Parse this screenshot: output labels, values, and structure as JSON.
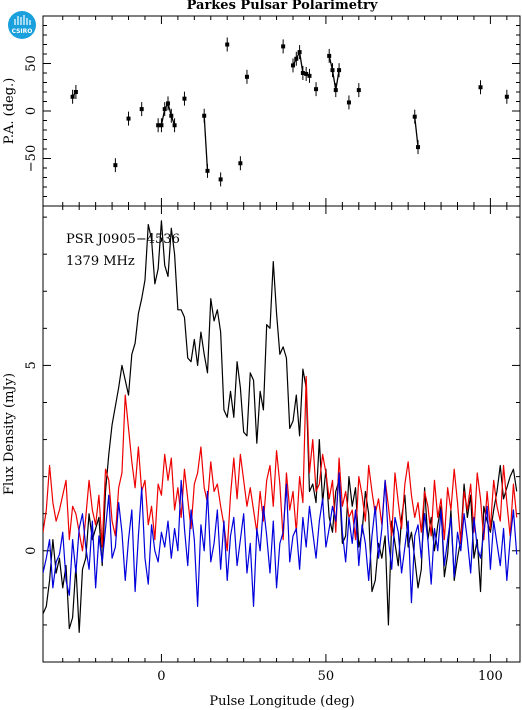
{
  "title": "Parkes Pulsar Polarimetry",
  "logo_text": "CSIRO",
  "colors": {
    "total_intensity": "#000000",
    "linear": "#ee0000",
    "circular": "#0000dd",
    "logo": "#1aa0dc"
  },
  "chart_data": [
    {
      "type": "scatter",
      "panel": "position-angle",
      "ylabel": "P.A. (deg.)",
      "xlim": [
        -36,
        109
      ],
      "ylim": [
        -100,
        100
      ],
      "yticks": [
        -50,
        0,
        50
      ],
      "segments": [
        [
          [
            -27,
            15
          ],
          [
            -26,
            20
          ]
        ],
        [
          [
            -14,
            -57
          ]
        ],
        [
          [
            -10,
            -8
          ]
        ],
        [
          [
            -6,
            2
          ]
        ],
        [
          [
            -1,
            -15
          ],
          [
            0,
            -15
          ],
          [
            1,
            2
          ],
          [
            2,
            8
          ],
          [
            3,
            -5
          ],
          [
            4,
            -15
          ]
        ],
        [
          [
            7,
            13
          ]
        ],
        [
          [
            13,
            -5
          ],
          [
            14,
            -63
          ]
        ],
        [
          [
            18,
            -72
          ]
        ],
        [
          [
            20,
            70
          ]
        ],
        [
          [
            24,
            -55
          ]
        ],
        [
          [
            26,
            36
          ]
        ],
        [
          [
            37,
            68
          ]
        ],
        [
          [
            40,
            48
          ],
          [
            41,
            55
          ],
          [
            42,
            62
          ],
          [
            43,
            40
          ],
          [
            44,
            39
          ],
          [
            45,
            37
          ]
        ],
        [
          [
            47,
            23
          ]
        ],
        [
          [
            51,
            58
          ],
          [
            52,
            43
          ],
          [
            53,
            22
          ],
          [
            54,
            43
          ]
        ],
        [
          [
            57,
            9
          ]
        ],
        [
          [
            60,
            22
          ]
        ],
        [
          [
            77,
            -6
          ],
          [
            78,
            -38
          ]
        ],
        [
          [
            97,
            25
          ]
        ],
        [
          [
            105,
            15
          ]
        ]
      ]
    },
    {
      "type": "line",
      "panel": "flux-density",
      "ylabel": "Flux Density (mJy)",
      "xlabel": "Pulse Longitude (deg)",
      "xlim": [
        -36,
        109
      ],
      "ylim": [
        -3,
        9.3
      ],
      "yticks": [
        0,
        5
      ],
      "xticks": [
        0,
        50,
        100
      ],
      "annotations": [
        "PSR J0905−4536",
        "1379 MHz"
      ],
      "x": [
        -36,
        -35,
        -34,
        -33,
        -32,
        -31,
        -30,
        -29,
        -28,
        -27,
        -26,
        -25,
        -24,
        -23,
        -22,
        -21,
        -20,
        -19,
        -18,
        -17,
        -16,
        -15,
        -14,
        -13,
        -12,
        -11,
        -10,
        -9,
        -8,
        -7,
        -6,
        -5,
        -4,
        -3,
        -2,
        -1,
        0,
        1,
        2,
        3,
        4,
        5,
        6,
        7,
        8,
        9,
        10,
        11,
        12,
        13,
        14,
        15,
        16,
        17,
        18,
        19,
        20,
        21,
        22,
        23,
        24,
        25,
        26,
        27,
        28,
        29,
        30,
        31,
        32,
        33,
        34,
        35,
        36,
        37,
        38,
        39,
        40,
        41,
        42,
        43,
        44,
        45,
        46,
        47,
        48,
        49,
        50,
        51,
        52,
        53,
        54,
        55,
        56,
        57,
        58,
        59,
        60,
        61,
        62,
        63,
        64,
        65,
        66,
        67,
        68,
        69,
        70,
        71,
        72,
        73,
        74,
        75,
        76,
        77,
        78,
        79,
        80,
        81,
        82,
        83,
        84,
        85,
        86,
        87,
        88,
        89,
        90,
        91,
        92,
        93,
        94,
        95,
        96,
        97,
        98,
        99,
        100,
        101,
        102,
        103,
        104,
        105,
        106,
        107,
        108
      ],
      "series": [
        {
          "role": "total-intensity",
          "values": [
            -1.7,
            -1.5,
            -0.8,
            0.3,
            -0.6,
            -0.2,
            -1.0,
            -0.4,
            -2.1,
            -1.8,
            -0.4,
            -2.2,
            -0.5,
            -0.2,
            1.0,
            0.3,
            0.6,
            0.9,
            -0.4,
            1.6,
            2.6,
            3.4,
            3.9,
            4.4,
            5.0,
            4.6,
            4.2,
            5.3,
            5.6,
            6.4,
            6.8,
            7.3,
            8.8,
            8.4,
            7.2,
            7.6,
            8.9,
            7.7,
            7.4,
            8.7,
            8.0,
            6.5,
            6.5,
            6.3,
            5.2,
            5.1,
            5.7,
            5.0,
            5.9,
            5.3,
            4.8,
            6.8,
            6.2,
            6.5,
            5.9,
            3.8,
            3.6,
            4.3,
            3.6,
            5.1,
            4.4,
            3.2,
            3.1,
            4.8,
            4.6,
            2.9,
            4.3,
            3.8,
            6.1,
            6.0,
            7.8,
            6.4,
            5.3,
            5.5,
            5.2,
            3.3,
            3.5,
            4.2,
            3.1,
            4.9,
            4.4,
            1.6,
            1.8,
            1.3,
            3.0,
            1.3,
            2.2,
            0.9,
            0.5,
            1.6,
            1.9,
            0.2,
            0.4,
            2.0,
            1.2,
            1.7,
            0.1,
            0.5,
            1.6,
            1.0,
            -1.1,
            -0.8,
            0.2,
            -0.2,
            0.4,
            -2.0,
            0.8,
            0.2,
            -0.4,
            0.9,
            1.5,
            0.1,
            0.5,
            -0.2,
            -1.0,
            -0.5,
            1.7,
            0.3,
            0.9,
            0.0,
            0.7,
            1.2,
            -0.7,
            -0.1,
            1.1,
            -0.8,
            -0.2,
            0.3,
            1.8,
            0.9,
            1.5,
            -0.2,
            0.3,
            -1.1,
            1.2,
            0.8,
            0.5,
            1.1,
            1.6,
            2.3,
            1.4,
            1.7,
            2.0,
            2.2,
            1.6
          ]
        },
        {
          "role": "linear-polarization",
          "values": [
            0.5,
            1.1,
            2.3,
            1.3,
            0.8,
            1.1,
            1.5,
            1.9,
            0.3,
            1.2,
            1.0,
            0.5,
            0.0,
            0.9,
            1.9,
            1.1,
            0.7,
            1.5,
            0.1,
            2.2,
            1.9,
            0.8,
            0.4,
            1.7,
            2.1,
            4.2,
            3.3,
            2.4,
            1.7,
            2.8,
            1.6,
            1.9,
            0.7,
            1.2,
            0.3,
            1.8,
            1.5,
            2.6,
            1.9,
            2.5,
            1.1,
            1.7,
            0.9,
            2.2,
            1.4,
            0.6,
            1.8,
            2.1,
            2.8,
            1.7,
            1.3,
            2.4,
            1.6,
            1.8,
            1.2,
            0.7,
            0.0,
            1.5,
            2.5,
            1.4,
            2.6,
            1.9,
            1.2,
            1.7,
            1.1,
            0.5,
            1.6,
            0.8,
            1.9,
            2.3,
            1.2,
            2.7,
            1.8,
            0.3,
            2.1,
            1.1,
            1.6,
            0.5,
            2.0,
            1.3,
            4.7,
            2.1,
            3.0,
            1.6,
            1.8,
            2.6,
            2.1,
            1.4,
            1.9,
            0.5,
            2.5,
            1.2,
            1.6,
            0.9,
            1.1,
            0.3,
            2.0,
            1.5,
            0.8,
            2.3,
            1.6,
            1.0,
            1.4,
            0.7,
            1.9,
            1.2,
            0.4,
            2.1,
            1.3,
            0.6,
            1.8,
            2.4,
            1.5,
            0.9,
            1.3,
            0.5,
            1.6,
            1.2,
            0.4,
            1.9,
            0.9,
            1.4,
            0.3,
            1.7,
            1.1,
            2.2,
            1.3,
            0.2,
            1.6,
            1.1,
            1.8,
            0.5,
            2.1,
            1.4,
            0.3,
            1.6,
            0.6,
            1.9,
            1.2,
            0.8,
            2.3,
            1.3,
            0.4,
            1.8,
            0.9
          ]
        },
        {
          "role": "circular-polarization",
          "values": [
            -0.6,
            -0.2,
            0.3,
            -1.0,
            -0.3,
            -0.1,
            0.5,
            -0.8,
            -1.2,
            0.3,
            -0.6,
            0.6,
            1.0,
            0.1,
            -0.5,
            0.8,
            -1.0,
            0.4,
            -0.3,
            0.6,
            1.5,
            -0.2,
            0.1,
            1.3,
            0.5,
            -0.8,
            0.3,
            1.1,
            -1.1,
            0.4,
            1.7,
            -0.2,
            -0.9,
            0.7,
            0.0,
            -0.3,
            0.5,
            0.1,
            0.8,
            -0.2,
            0.6,
            0.0,
            1.9,
            0.6,
            -0.4,
            1.1,
            0.3,
            -1.5,
            0.7,
            0.0,
            1.6,
            -0.3,
            0.2,
            1.1,
            -0.5,
            0.8,
            -0.8,
            0.4,
            0.9,
            -0.4,
            0.3,
            1.0,
            -0.6,
            0.2,
            -1.5,
            0.6,
            0.0,
            1.2,
            0.4,
            -0.6,
            0.8,
            -1.0,
            0.2,
            0.5,
            1.8,
            -0.3,
            0.4,
            0.6,
            -0.5,
            0.9,
            0.1,
            1.2,
            0.5,
            -0.2,
            0.8,
            1.4,
            0.1,
            0.6,
            1.2,
            0.8,
            2.1,
            0.5,
            -0.3,
            0.9,
            0.2,
            1.1,
            -0.4,
            0.7,
            0.2,
            -0.8,
            0.4,
            1.2,
            -0.2,
            0.6,
            1.9,
            0.3,
            -0.5,
            0.9,
            0.5,
            -0.6,
            0.1,
            0.8,
            -1.4,
            0.4,
            0.7,
            -0.2,
            1.0,
            0.3,
            -0.9,
            0.6,
            0.0,
            1.1,
            -0.4,
            0.3,
            0.9,
            -0.7,
            0.5,
            0.0,
            1.0,
            0.3,
            -0.6,
            0.9,
            0.1,
            -0.2,
            0.5,
            1.2,
            -0.5,
            0.8,
            0.2,
            -0.4,
            0.6,
            -0.8,
            0.3,
            1.1,
            -0.1
          ]
        }
      ]
    }
  ]
}
